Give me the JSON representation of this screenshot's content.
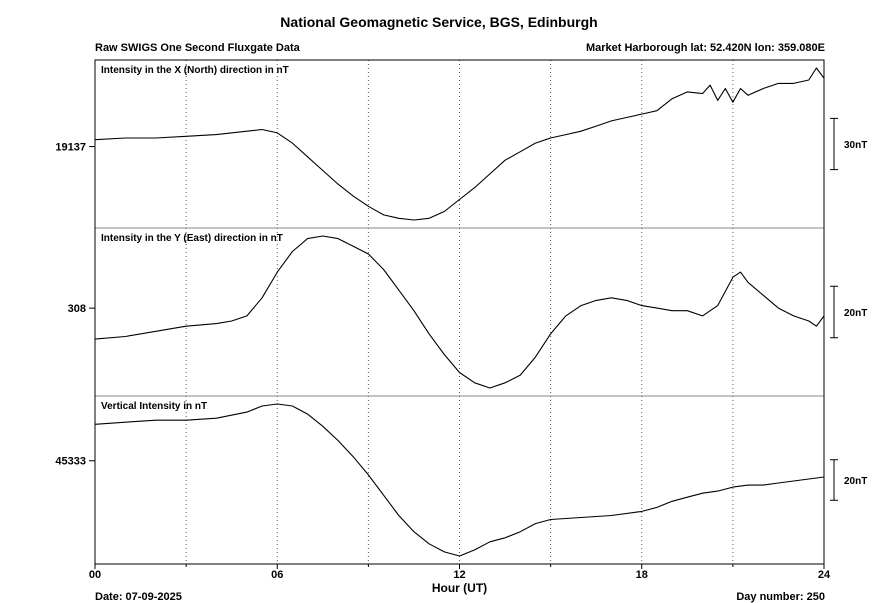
{
  "header": {
    "title": "National Geomagnetic Service, BGS, Edinburgh",
    "subtitle_left": "Raw SWIGS One Second Fluxgate Data",
    "location": "Market Harborough  lat: 52.420N lon: 359.080E"
  },
  "footer": {
    "date": "Date: 07-09-2025",
    "day_number": "Day number:  250"
  },
  "chart_data": {
    "type": "line",
    "xlabel": "Hour (UT)",
    "xlim": [
      0,
      24
    ],
    "x_ticks": [
      "00",
      "06",
      "12",
      "18",
      "24"
    ],
    "grid": "dotted vertical every 3 hours",
    "series_color": "#000000",
    "panels": [
      {
        "label": "Intensity in the X (North) direction in nT",
        "tick_value": "19137",
        "scale_label": "30nT",
        "unit": "nT",
        "x": [
          0,
          1,
          2,
          3,
          4,
          5,
          5.5,
          6,
          6.5,
          7,
          7.5,
          8,
          8.5,
          9,
          9.5,
          10,
          10.5,
          11,
          11.5,
          12,
          12.5,
          13,
          13.5,
          14,
          14.5,
          15,
          15.5,
          16,
          16.5,
          17,
          17.5,
          18,
          18.5,
          19,
          19.5,
          20,
          20.25,
          20.5,
          20.75,
          21,
          21.25,
          21.5,
          22,
          22.5,
          23,
          23.5,
          23.75,
          24
        ],
        "values": [
          19141,
          19142,
          19142,
          19143,
          19144,
          19146,
          19147,
          19145,
          19139,
          19131,
          19123,
          19115,
          19108,
          19102,
          19097,
          19095,
          19094,
          19095,
          19099,
          19106,
          19113,
          19121,
          19129,
          19134,
          19139,
          19142,
          19144,
          19146,
          19149,
          19152,
          19154,
          19156,
          19158,
          19165,
          19169,
          19168,
          19173,
          19164,
          19171,
          19163,
          19171,
          19167,
          19171,
          19174,
          19174,
          19176,
          19183,
          19177
        ]
      },
      {
        "label": "Intensity in the Y (East) direction in nT",
        "tick_value": "308",
        "scale_label": "20nT",
        "unit": "nT",
        "x": [
          0,
          1,
          2,
          3,
          4,
          4.5,
          5,
          5.5,
          6,
          6.5,
          7,
          7.5,
          8,
          8.5,
          9,
          9.5,
          10,
          10.5,
          11,
          11.5,
          12,
          12.5,
          13,
          13.5,
          14,
          14.5,
          15,
          15.5,
          16,
          16.5,
          17,
          17.5,
          18,
          18.5,
          19,
          19.5,
          20,
          20.5,
          21,
          21.25,
          21.5,
          22,
          22.5,
          23,
          23.5,
          23.75,
          24
        ],
        "values": [
          296,
          297,
          299,
          301,
          302,
          303,
          305,
          312,
          322,
          330,
          335,
          336,
          335,
          332,
          329,
          323,
          315,
          307,
          298,
          290,
          283,
          279,
          277,
          279,
          282,
          289,
          298,
          305,
          309,
          311,
          312,
          311,
          309,
          308,
          307,
          307,
          305,
          309,
          320,
          322,
          318,
          313,
          308,
          305,
          303,
          301,
          305
        ]
      },
      {
        "label": "Vertical Intensity in nT",
        "tick_value": "45333",
        "scale_label": "20nT",
        "unit": "nT",
        "x": [
          0,
          1,
          2,
          3,
          4,
          5,
          5.5,
          6,
          6.5,
          7,
          7.5,
          8,
          8.5,
          9,
          9.5,
          10,
          10.5,
          11,
          11.5,
          12,
          12.5,
          13,
          13.5,
          14,
          14.5,
          15,
          16,
          17,
          18,
          18.5,
          19,
          19.5,
          20,
          20.5,
          21,
          21.5,
          22,
          22.5,
          23,
          23.5,
          24
        ],
        "values": [
          45351,
          45352,
          45353,
          45353,
          45354,
          45357,
          45360,
          45361,
          45360,
          45356,
          45350,
          45343,
          45335,
          45326,
          45316,
          45306,
          45298,
          45292,
          45288,
          45286,
          45289,
          45293,
          45295,
          45298,
          45302,
          45304,
          45305,
          45306,
          45308,
          45310,
          45313,
          45315,
          45317,
          45318,
          45320,
          45321,
          45321,
          45322,
          45323,
          45324,
          45325
        ]
      }
    ]
  }
}
